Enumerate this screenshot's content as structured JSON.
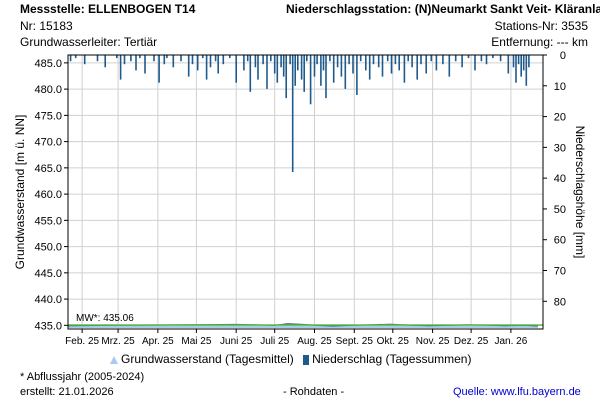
{
  "header": {
    "station_left": "Messstelle: ELLENBOGEN T14",
    "nr": "Nr: 15183",
    "aquifer": "Grundwasserleiter: Tertiär",
    "station_right": "Niederschlagsstation: (N)Neumarkt Sankt Veit- Kläranlage",
    "station_nr": "Stations-Nr: 3535",
    "distance": "Entfernung: --- km"
  },
  "legend": {
    "groundwater": "Grundwasserstand (Tagesmittel)",
    "precipitation": "Niederschlag (Tagessummen)"
  },
  "footer": {
    "note": "* Abflussjahr (2005-2024)",
    "created": "erstellt:  21.01.2026",
    "raw": "- Rohdaten -",
    "source_label": "Quelle:",
    "source_url": "www.lfu.bayern.de"
  },
  "colors": {
    "groundwater_fill": "#a9c9ee",
    "groundwater_line": "#1f4f8f",
    "precip_bars": "#1f5a8c",
    "mw_line": "#5cbf3a"
  },
  "chart_data": {
    "type": "bar",
    "ylabel": "Grundwasserstand [m ü. NN]",
    "y2label": "Niederschlagshöhe [mm]",
    "ylim": [
      434.3,
      486.5
    ],
    "yticks": [
      485.0,
      480.0,
      475.0,
      470.0,
      465.0,
      460.0,
      455.0,
      450.0,
      445.0,
      440.0,
      435.0
    ],
    "y2lim": [
      0,
      89
    ],
    "y2ticks": [
      0,
      10,
      20,
      30,
      40,
      50,
      60,
      70,
      80
    ],
    "x_tick_labels": [
      "Feb. 25",
      "Mrz. 25",
      "Apr. 25",
      "Mai 25",
      "Juni 25",
      "Juli 25",
      "Aug. 25",
      "Sept. 25",
      "Okt. 25",
      "Nov. 25",
      "Dez. 25",
      "Jan. 26"
    ],
    "x_ticks_day": [
      0,
      28,
      59,
      89,
      120,
      150,
      181,
      212,
      242,
      273,
      303,
      334
    ],
    "x_range_days": [
      -11,
      359
    ],
    "mw_label": "MW*: 435.06",
    "mw_value": 435.06,
    "series": [
      {
        "name": "Grundwasserstand (Tagesmittel)",
        "type": "area",
        "day": [
          -11,
          20,
          45,
          80,
          120,
          135,
          150,
          160,
          170,
          180,
          195,
          210,
          225,
          240,
          255,
          270,
          285,
          300,
          315,
          330,
          345,
          355
        ],
        "value": [
          434.95,
          435.0,
          435.05,
          435.1,
          435.15,
          435.1,
          435.0,
          435.3,
          435.2,
          435.05,
          434.9,
          435.0,
          435.1,
          435.2,
          435.05,
          434.95,
          435.0,
          435.1,
          435.05,
          434.95,
          435.0,
          434.9
        ]
      },
      {
        "name": "Niederschlag (Tagessummen)",
        "type": "bar",
        "day": [
          -9,
          -5,
          2,
          12,
          18,
          27,
          30,
          33,
          38,
          42,
          45,
          49,
          56,
          60,
          64,
          66,
          71,
          77,
          83,
          86,
          90,
          94,
          97,
          100,
          104,
          106,
          110,
          115,
          120,
          126,
          129,
          131,
          135,
          137,
          141,
          144,
          147,
          150,
          152,
          155,
          157,
          159,
          162,
          164,
          166,
          168,
          171,
          173,
          175,
          178,
          181,
          183,
          186,
          188,
          190,
          193,
          196,
          199,
          202,
          205,
          208,
          211,
          214,
          217,
          221,
          224,
          227,
          231,
          234,
          238,
          241,
          244,
          247,
          251,
          254,
          257,
          261,
          264,
          268,
          272,
          276,
          281,
          286,
          291,
          296,
          301,
          306,
          311,
          315,
          320,
          326,
          332,
          336,
          338,
          340,
          342,
          344,
          346,
          348
        ],
        "value": [
          2,
          1,
          3,
          2,
          4,
          1,
          8,
          3,
          2,
          5,
          1,
          6,
          2,
          9,
          3,
          1,
          4,
          2,
          7,
          3,
          5,
          1,
          8,
          4,
          2,
          6,
          3,
          1,
          9,
          5,
          2,
          12,
          4,
          8,
          3,
          11,
          2,
          6,
          9,
          4,
          7,
          14,
          3,
          38,
          10,
          5,
          8,
          12,
          2,
          16,
          7,
          3,
          10,
          5,
          14,
          2,
          9,
          4,
          7,
          11,
          3,
          6,
          13,
          2,
          5,
          8,
          3,
          4,
          7,
          2,
          6,
          3,
          5,
          9,
          2,
          4,
          8,
          3,
          6,
          2,
          5,
          3,
          7,
          2,
          4,
          1,
          5,
          2,
          3,
          1,
          2,
          6,
          4,
          9,
          3,
          7,
          5,
          10,
          4
        ]
      }
    ]
  }
}
